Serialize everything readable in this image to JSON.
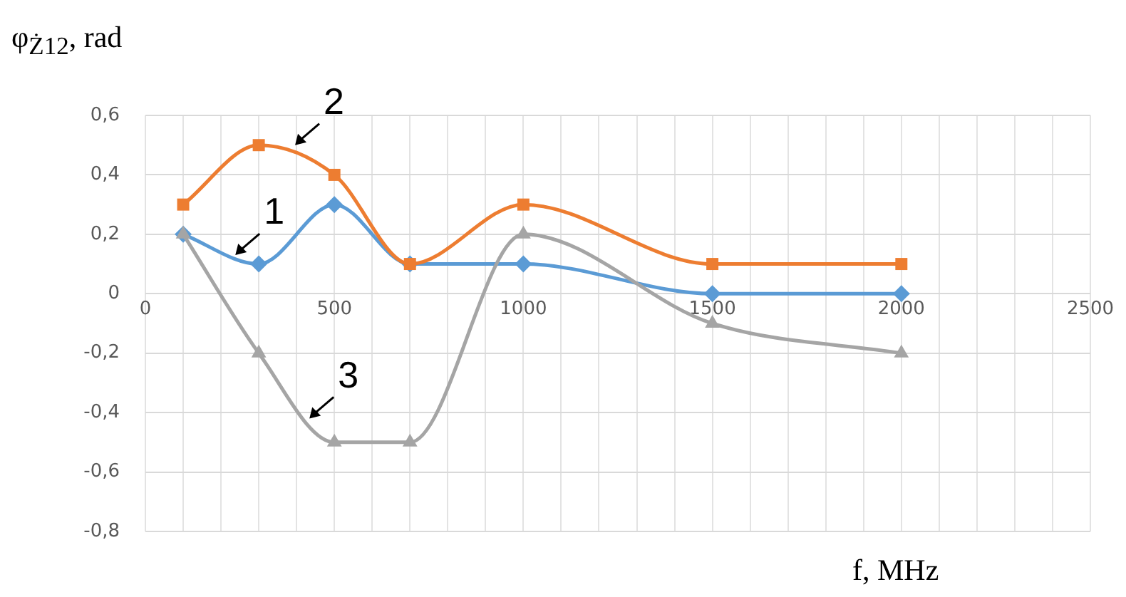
{
  "chart_data": {
    "type": "line",
    "ylabel": "φ$_{Ż12}$, rad",
    "xlabel": "f, MHz",
    "x": [
      100,
      300,
      500,
      700,
      1000,
      1500,
      2000
    ],
    "series": [
      {
        "color": "#5b9bd5",
        "marker": "diamond",
        "values": [
          0.2,
          0.1,
          0.3,
          0.1,
          0.1,
          0,
          0
        ]
      },
      {
        "color": "#ed7d31",
        "marker": "square",
        "values": [
          0.3,
          0.5,
          0.4,
          0.1,
          0.3,
          0.1,
          0.1
        ]
      },
      {
        "color": "#a5a5a5",
        "marker": "triangle",
        "values": [
          0.2,
          -0.2,
          -0.5,
          -0.5,
          0.2,
          -0.1,
          -0.2
        ]
      }
    ],
    "annotations": [
      {
        "text": "1",
        "x": 238,
        "y": 0.13
      },
      {
        "text": "2",
        "x": 396,
        "y": 0.5
      },
      {
        "text": "3",
        "x": 434,
        "y": -0.42
      }
    ],
    "xlim": [
      0,
      2500
    ],
    "xticks": [
      0,
      {
        "value": 100,
        "label": null
      },
      {
        "value": 200,
        "label": null
      },
      {
        "value": 300,
        "label": null
      },
      {
        "value": 400,
        "label": null
      },
      500,
      {
        "value": 600,
        "label": null
      },
      {
        "value": 700,
        "label": null
      },
      {
        "value": 800,
        "label": null
      },
      {
        "value": 900,
        "label": null
      },
      1000,
      {
        "value": 1100,
        "label": null
      },
      {
        "value": 1200,
        "label": null
      },
      {
        "value": 1300,
        "label": null
      },
      {
        "value": 1400,
        "label": null
      },
      1500,
      {
        "value": 1600,
        "label": null
      },
      {
        "value": 1700,
        "label": null
      },
      {
        "value": 1800,
        "label": null
      },
      {
        "value": 1900,
        "label": null
      },
      2000,
      {
        "value": 2100,
        "label": null
      },
      {
        "value": 2200,
        "label": null
      },
      {
        "value": 2300,
        "label": null
      },
      {
        "value": 2400,
        "label": null
      },
      2500
    ],
    "ylim": [
      -0.8,
      0.6
    ],
    "yticks": [
      {
        "value": -0.8,
        "label": "-0,8"
      },
      {
        "value": -0.6,
        "label": "-0,6"
      },
      {
        "value": -0.4,
        "label": "-0,4"
      },
      {
        "value": -0.2,
        "label": "-0,2"
      },
      0,
      {
        "value": 0.2,
        "label": "0,2"
      },
      {
        "value": 0.4,
        "label": "0,4"
      },
      {
        "value": 0.6,
        "label": "0,6"
      }
    ],
    "grid": true,
    "legend": false
  }
}
